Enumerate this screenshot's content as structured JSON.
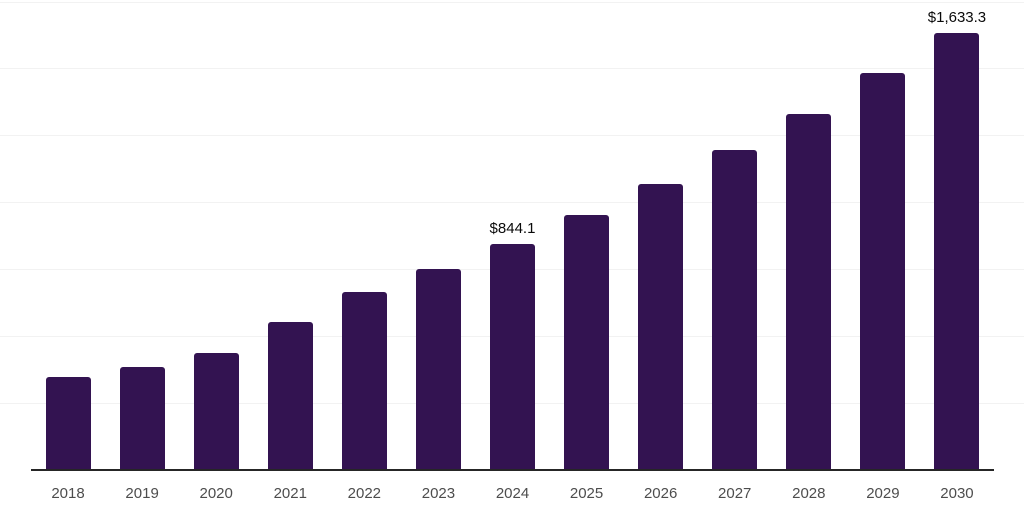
{
  "chart_data": {
    "type": "bar",
    "title": "",
    "xlabel": "",
    "ylabel": "",
    "categories": [
      "2018",
      "2019",
      "2020",
      "2021",
      "2022",
      "2023",
      "2024",
      "2025",
      "2026",
      "2027",
      "2028",
      "2029",
      "2030"
    ],
    "values": [
      346,
      387,
      439,
      555,
      664,
      750,
      844.1,
      952,
      1069,
      1195,
      1331,
      1483,
      1633.3
    ],
    "point_labels": [
      "",
      "",
      "",
      "",
      "",
      "",
      "$844.1",
      "",
      "",
      "",
      "",
      "",
      "$1,633.3"
    ],
    "labeled_values_note": "only 2024 and 2030 bars carry visible data labels",
    "ylim": [
      0,
      1750
    ],
    "gridline_step": 250,
    "grid": "horizontal-only",
    "y_tick_labels_visible": false,
    "legend": "none",
    "colors": {
      "bar": "#331351",
      "axis_line": "#262626",
      "gridline": "#f2f2f2",
      "tick_label": "#4d4d4d",
      "data_label": "#0a0a0a",
      "background": "#ffffff"
    }
  }
}
